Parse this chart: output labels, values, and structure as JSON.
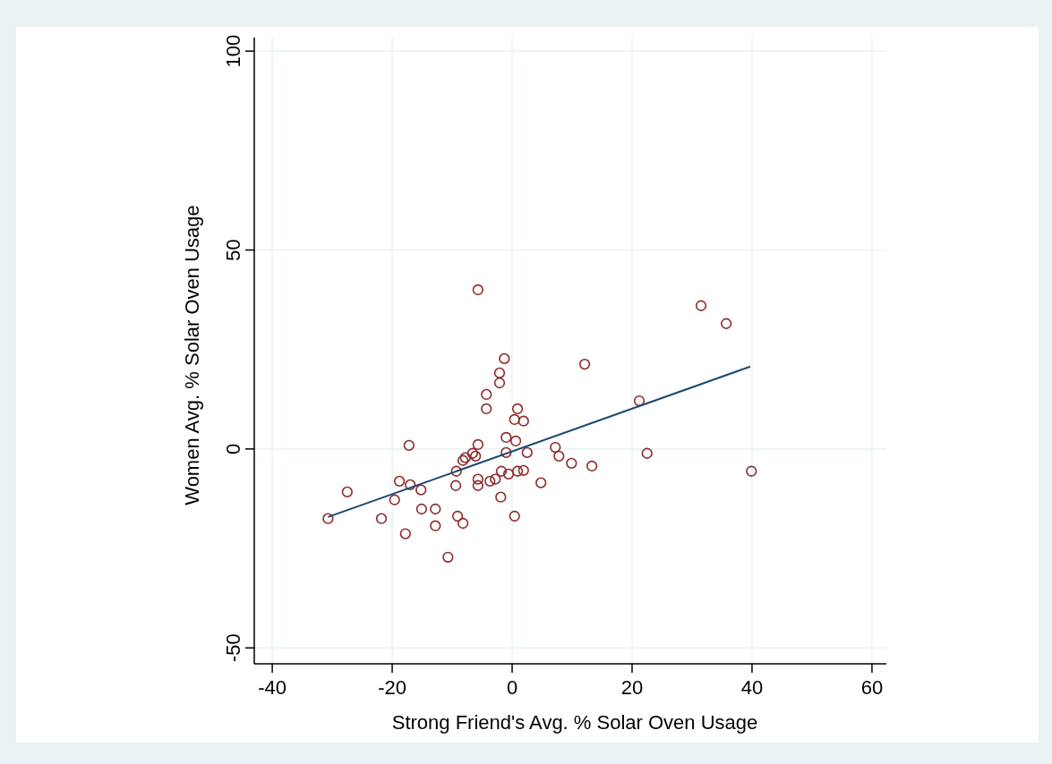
{
  "chart_data": {
    "type": "scatter",
    "xlabel": "Strong Friend's Avg. % Solar Oven Usage",
    "ylabel": "Women Avg. % Solar Oven Usage",
    "xlim": [
      -43,
      62.4
    ],
    "ylim": [
      -54,
      103.4
    ],
    "xticks": [
      -40,
      -20,
      0,
      20,
      40,
      60
    ],
    "yticks": [
      -50,
      0,
      50,
      100
    ],
    "grid": true,
    "series": [
      {
        "marker": "circle",
        "color": "#8c2a2a",
        "x": [
          -30.7,
          -27.5,
          -21.8,
          -19.6,
          -18.8,
          -17.8,
          -17.2,
          -17.0,
          -15.2,
          -15.1,
          -12.8,
          -12.8,
          -10.7,
          -9.4,
          -9.3,
          -9.1,
          -8.2,
          -8.2,
          -7.8,
          -6.6,
          -6.1,
          -5.7,
          -5.7,
          -5.7,
          -5.7,
          -4.3,
          -4.3,
          -3.7,
          -2.8,
          -2.1,
          -2.1,
          -1.9,
          -1.8,
          -1.3,
          -1.0,
          -1.0,
          -0.6,
          0.4,
          0.6,
          0.4,
          0.9,
          0.9,
          1.9,
          1.9,
          2.5,
          4.8,
          7.2,
          7.8,
          9.9,
          12.1,
          13.3,
          21.2,
          22.5,
          31.5,
          35.7,
          39.9
        ],
        "values": [
          -17.5,
          -10.8,
          -17.5,
          -12.8,
          -8.1,
          -21.3,
          0.9,
          -9.0,
          -10.3,
          -15.1,
          -15.1,
          -19.3,
          -27.2,
          -9.2,
          -5.6,
          -16.9,
          -18.7,
          -2.9,
          -2.2,
          -1.1,
          -1.8,
          40,
          1.1,
          -7.6,
          -9.2,
          10.1,
          13.7,
          -8.1,
          -7.6,
          19.1,
          16.6,
          -12.1,
          -5.6,
          22.7,
          2.9,
          -0.9,
          -6.3,
          7.4,
          2.0,
          -16.9,
          10.1,
          -5.6,
          7.0,
          -5.4,
          -0.9,
          -8.5,
          0.4,
          -1.8,
          -3.6,
          21.3,
          -4.3,
          12.1,
          -1.1,
          36.0,
          31.5,
          -5.6
        ]
      },
      {
        "type": "line",
        "color": "#1a476f",
        "x": [
          -30.7,
          39.7
        ],
        "values": [
          -17.1,
          20.7
        ]
      }
    ]
  }
}
